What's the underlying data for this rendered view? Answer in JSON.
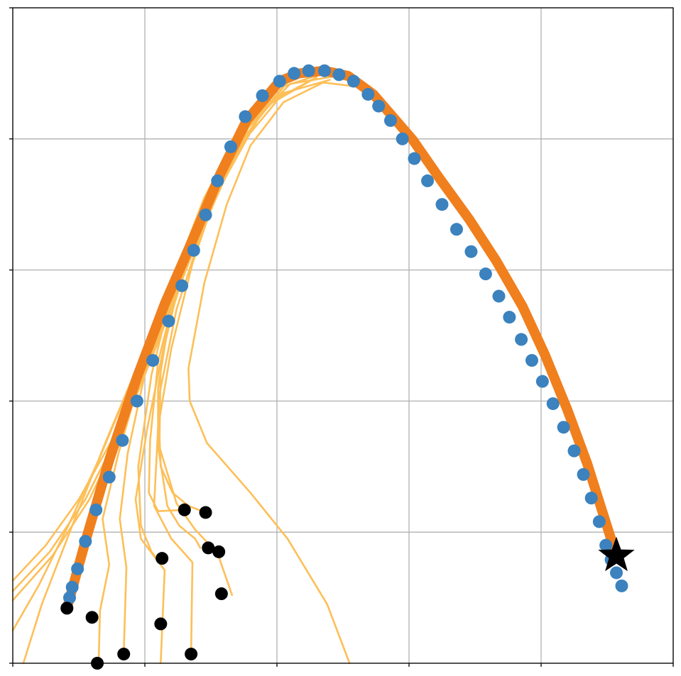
{
  "chart_data": {
    "type": "line",
    "title": "",
    "xlabel": "",
    "ylabel": "",
    "xlim": [
      0,
      5
    ],
    "ylim": [
      0,
      5
    ],
    "xticks": [
      0,
      1,
      2,
      3,
      4,
      5
    ],
    "yticks": [
      0,
      1,
      2,
      3,
      4,
      5
    ],
    "tick_labels_shown": false,
    "grid": true,
    "legend": "none",
    "colors": {
      "grid": "#b0b0b0",
      "candidate_paths": "#fdbf58",
      "main_path": "#f07f1e",
      "waypoints": "#3b82be",
      "start_points": "#000000",
      "goal_marker": "#000000"
    },
    "series": [
      {
        "role": "main-path",
        "points": [
          [
            0.41,
            0.42
          ],
          [
            0.55,
            0.93
          ],
          [
            0.73,
            1.55
          ],
          [
            0.94,
            2.18
          ],
          [
            1.15,
            2.74
          ],
          [
            1.37,
            3.25
          ],
          [
            1.57,
            3.73
          ],
          [
            1.77,
            4.14
          ],
          [
            2.02,
            4.44
          ],
          [
            2.17,
            4.5
          ],
          [
            2.36,
            4.52
          ],
          [
            2.54,
            4.48
          ],
          [
            2.73,
            4.34
          ],
          [
            3.03,
            3.99
          ],
          [
            3.23,
            3.7
          ],
          [
            3.46,
            3.38
          ],
          [
            3.66,
            3.07
          ],
          [
            3.86,
            2.72
          ],
          [
            4.03,
            2.35
          ],
          [
            4.2,
            1.93
          ],
          [
            4.35,
            1.52
          ],
          [
            4.45,
            1.2
          ],
          [
            4.57,
            0.82
          ]
        ]
      },
      {
        "role": "waypoints",
        "points": [
          [
            0.41,
            0.42
          ],
          [
            0.43,
            0.5
          ],
          [
            0.45,
            0.58
          ],
          [
            0.49,
            0.72
          ],
          [
            0.55,
            0.93
          ],
          [
            0.63,
            1.17
          ],
          [
            0.73,
            1.42
          ],
          [
            0.83,
            1.7
          ],
          [
            0.94,
            2.0
          ],
          [
            1.06,
            2.31
          ],
          [
            1.18,
            2.61
          ],
          [
            1.28,
            2.88
          ],
          [
            1.37,
            3.15
          ],
          [
            1.46,
            3.42
          ],
          [
            1.55,
            3.68
          ],
          [
            1.65,
            3.94
          ],
          [
            1.76,
            4.17
          ],
          [
            1.89,
            4.33
          ],
          [
            2.02,
            4.44
          ],
          [
            2.13,
            4.5
          ],
          [
            2.24,
            4.52
          ],
          [
            2.36,
            4.52
          ],
          [
            2.47,
            4.49
          ],
          [
            2.58,
            4.44
          ],
          [
            2.69,
            4.34
          ],
          [
            2.77,
            4.25
          ],
          [
            2.86,
            4.14
          ],
          [
            2.95,
            4.0
          ],
          [
            3.04,
            3.85
          ],
          [
            3.14,
            3.68
          ],
          [
            3.25,
            3.5
          ],
          [
            3.36,
            3.31
          ],
          [
            3.47,
            3.14
          ],
          [
            3.58,
            2.97
          ],
          [
            3.68,
            2.8
          ],
          [
            3.76,
            2.64
          ],
          [
            3.85,
            2.47
          ],
          [
            3.93,
            2.31
          ],
          [
            4.01,
            2.15
          ],
          [
            4.09,
            1.98
          ],
          [
            4.17,
            1.8
          ],
          [
            4.25,
            1.62
          ],
          [
            4.32,
            1.44
          ],
          [
            4.38,
            1.26
          ],
          [
            4.44,
            1.08
          ],
          [
            4.49,
            0.9
          ],
          [
            4.53,
            0.79
          ],
          [
            4.57,
            0.69
          ],
          [
            4.61,
            0.59
          ]
        ]
      },
      {
        "role": "candidate-paths",
        "paths": [
          [
            [
              0.0,
              0.63
            ],
            [
              0.25,
              0.9
            ],
            [
              0.5,
              1.25
            ],
            [
              0.75,
              1.7
            ],
            [
              1.0,
              2.25
            ],
            [
              1.25,
              2.9
            ],
            [
              1.5,
              3.55
            ],
            [
              1.75,
              4.1
            ],
            [
              2.02,
              4.44
            ],
            [
              2.3,
              4.52
            ],
            [
              2.55,
              4.45
            ]
          ],
          [
            [
              0.0,
              0.55
            ],
            [
              0.28,
              0.85
            ],
            [
              0.55,
              1.25
            ],
            [
              0.8,
              1.75
            ],
            [
              1.05,
              2.35
            ],
            [
              1.3,
              3.0
            ],
            [
              1.55,
              3.6
            ],
            [
              1.8,
              4.12
            ],
            [
              2.05,
              4.44
            ],
            [
              2.35,
              4.52
            ],
            [
              2.6,
              4.42
            ]
          ],
          [
            [
              0.0,
              0.48
            ],
            [
              0.3,
              0.82
            ],
            [
              0.58,
              1.25
            ],
            [
              0.83,
              1.78
            ],
            [
              1.08,
              2.4
            ],
            [
              1.33,
              3.05
            ],
            [
              1.58,
              3.65
            ],
            [
              1.85,
              4.14
            ],
            [
              2.1,
              4.46
            ],
            [
              2.4,
              4.5
            ]
          ],
          [
            [
              0.0,
              0.25
            ],
            [
              0.2,
              0.6
            ],
            [
              0.42,
              1.05
            ],
            [
              0.65,
              1.55
            ],
            [
              0.9,
              2.15
            ],
            [
              1.15,
              2.8
            ],
            [
              1.42,
              3.45
            ],
            [
              1.7,
              4.05
            ],
            [
              2.0,
              4.42
            ],
            [
              2.35,
              4.52
            ]
          ],
          [
            [
              0.08,
              0.0
            ],
            [
              0.22,
              0.45
            ],
            [
              0.45,
              1.05
            ],
            [
              0.7,
              1.68
            ],
            [
              0.95,
              2.28
            ],
            [
              1.2,
              2.9
            ],
            [
              1.45,
              3.55
            ],
            [
              1.72,
              4.07
            ],
            [
              2.0,
              4.43
            ]
          ],
          [
            [
              0.65,
              0.0
            ],
            [
              0.66,
              0.4
            ],
            [
              0.73,
              0.75
            ],
            [
              0.68,
              1.1
            ],
            [
              0.8,
              1.6
            ],
            [
              1.0,
              2.3
            ],
            [
              1.22,
              2.95
            ],
            [
              1.45,
              3.55
            ],
            [
              1.72,
              4.05
            ],
            [
              2.05,
              4.44
            ],
            [
              2.35,
              4.52
            ]
          ],
          [
            [
              0.84,
              0.07
            ],
            [
              0.86,
              0.73
            ],
            [
              0.81,
              1.1
            ],
            [
              0.87,
              1.6
            ],
            [
              1.02,
              2.3
            ],
            [
              1.22,
              2.95
            ],
            [
              1.45,
              3.55
            ],
            [
              1.72,
              4.05
            ],
            [
              2.05,
              4.44
            ]
          ],
          [
            [
              1.12,
              0.0
            ],
            [
              1.15,
              0.71
            ],
            [
              0.97,
              0.95
            ],
            [
              0.93,
              1.25
            ],
            [
              1.02,
              1.8
            ],
            [
              1.18,
              2.6
            ],
            [
              1.38,
              3.25
            ],
            [
              1.62,
              3.85
            ],
            [
              1.95,
              4.35
            ]
          ],
          [
            [
              1.12,
              0.76
            ],
            [
              1.05,
              0.85
            ],
            [
              0.97,
              1.05
            ],
            [
              0.95,
              1.5
            ],
            [
              1.05,
              2.2
            ],
            [
              1.22,
              2.9
            ],
            [
              1.45,
              3.55
            ],
            [
              1.78,
              4.1
            ]
          ],
          [
            [
              1.35,
              0.07
            ],
            [
              1.36,
              0.77
            ],
            [
              1.2,
              0.95
            ],
            [
              1.07,
              1.2
            ],
            [
              1.1,
              1.8
            ],
            [
              1.2,
              2.4
            ],
            [
              1.36,
              3.05
            ],
            [
              1.58,
              3.7
            ],
            [
              1.92,
              4.25
            ],
            [
              2.3,
              4.47
            ]
          ],
          [
            [
              1.42,
              0.88
            ],
            [
              1.38,
              0.95
            ],
            [
              1.26,
              1.05
            ],
            [
              1.17,
              1.2
            ],
            [
              1.1,
              1.65
            ],
            [
              1.1,
              2.1
            ],
            [
              1.18,
              2.6
            ],
            [
              1.36,
              3.2
            ],
            [
              1.6,
              3.8
            ],
            [
              1.95,
              4.28
            ],
            [
              2.3,
              4.47
            ]
          ],
          [
            [
              1.66,
              0.52
            ],
            [
              1.55,
              0.84
            ],
            [
              1.38,
              1.02
            ],
            [
              1.24,
              1.22
            ],
            [
              1.11,
              1.65
            ],
            [
              1.12,
              2.3
            ],
            [
              1.26,
              2.9
            ],
            [
              1.45,
              3.5
            ],
            [
              1.7,
              4.0
            ],
            [
              2.05,
              4.4
            ],
            [
              2.35,
              4.5
            ]
          ],
          [
            [
              1.3,
              1.17
            ],
            [
              1.1,
              1.16
            ],
            [
              1.03,
              1.3
            ],
            [
              1.04,
              1.7
            ],
            [
              1.1,
              2.3
            ],
            [
              1.25,
              2.9
            ],
            [
              1.45,
              3.5
            ],
            [
              1.75,
              4.05
            ],
            [
              2.1,
              4.42
            ],
            [
              2.45,
              4.48
            ]
          ],
          [
            [
              1.46,
              1.15
            ],
            [
              1.33,
              1.2
            ],
            [
              1.21,
              1.3
            ],
            [
              1.12,
              1.5
            ],
            [
              1.1,
              2.0
            ],
            [
              1.24,
              2.7
            ],
            [
              1.45,
              3.35
            ],
            [
              1.72,
              3.95
            ],
            [
              2.05,
              4.35
            ],
            [
              2.4,
              4.45
            ]
          ],
          [
            [
              2.55,
              0.0
            ],
            [
              2.38,
              0.45
            ],
            [
              2.08,
              0.95
            ],
            [
              1.8,
              1.3
            ],
            [
              1.47,
              1.68
            ],
            [
              1.34,
              2.0
            ],
            [
              1.33,
              2.25
            ],
            [
              1.45,
              2.9
            ],
            [
              1.62,
              3.5
            ],
            [
              1.8,
              3.95
            ],
            [
              2.05,
              4.28
            ],
            [
              2.35,
              4.43
            ],
            [
              2.6,
              4.4
            ]
          ]
        ]
      },
      {
        "role": "start-points",
        "points": [
          [
            0.41,
            0.42
          ],
          [
            0.6,
            0.35
          ],
          [
            0.64,
            0.0
          ],
          [
            0.84,
            0.07
          ],
          [
            1.12,
            0.3
          ],
          [
            1.13,
            0.8
          ],
          [
            1.35,
            0.07
          ],
          [
            1.3,
            1.17
          ],
          [
            1.46,
            1.15
          ],
          [
            1.48,
            0.88
          ],
          [
            1.56,
            0.85
          ],
          [
            1.58,
            0.53
          ]
        ]
      },
      {
        "role": "goal",
        "points": [
          [
            4.57,
            0.82
          ]
        ]
      }
    ]
  }
}
